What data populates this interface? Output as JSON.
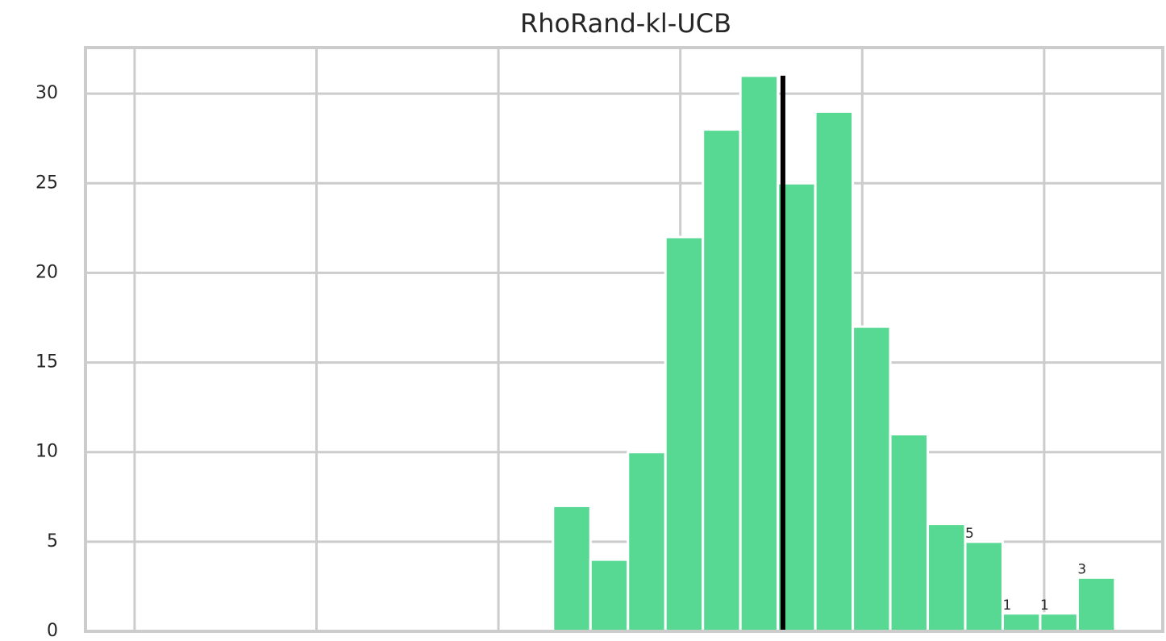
{
  "chart_data": {
    "type": "histogram",
    "title": "RhoRand-kl-UCB",
    "bins": [
      2.3,
      2.506,
      2.712,
      2.918,
      3.124,
      3.33,
      3.536,
      3.742,
      3.948,
      4.154,
      4.36,
      4.566,
      4.772,
      4.978,
      5.184,
      5.39
    ],
    "values": [
      7,
      4,
      10,
      22,
      28,
      31,
      25,
      29,
      17,
      11,
      6,
      5,
      1,
      1,
      3
    ],
    "value_labels": [
      null,
      null,
      null,
      null,
      null,
      null,
      null,
      null,
      null,
      null,
      null,
      "5",
      "1",
      "1",
      "3"
    ],
    "color": "#57d993",
    "vline": {
      "x": 3.564,
      "ymax": 31,
      "color": "#000000"
    },
    "xlim": [
      -0.27,
      5.652
    ],
    "xticks": [
      0,
      1,
      2,
      3,
      4,
      5
    ],
    "ylim": [
      0,
      32.57
    ],
    "yticks": [
      0,
      5,
      10,
      15,
      20,
      25,
      30
    ],
    "grid": true
  }
}
